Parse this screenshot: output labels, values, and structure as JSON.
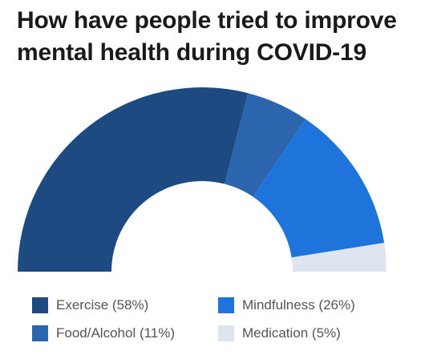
{
  "title": "How have people tried to improve mental health during COVID-19",
  "chart_data": {
    "type": "pie",
    "variant": "semi-donut",
    "title": "How have people tried to improve mental health during COVID-19",
    "slices": [
      {
        "label": "Exercise (58%)",
        "name": "Exercise",
        "value": 58,
        "color": "#1d4a80"
      },
      {
        "label": "Food/Alcohol (11%)",
        "name": "Food/Alcohol",
        "value": 11,
        "color": "#2b65ad"
      },
      {
        "label": "Mindfulness (26%)",
        "name": "Mindfulness",
        "value": 26,
        "color": "#1f74dc"
      },
      {
        "label": "Medication (5%)",
        "name": "Medication",
        "value": 5,
        "color": "#dfe5ee"
      }
    ],
    "legend_position": "bottom"
  }
}
